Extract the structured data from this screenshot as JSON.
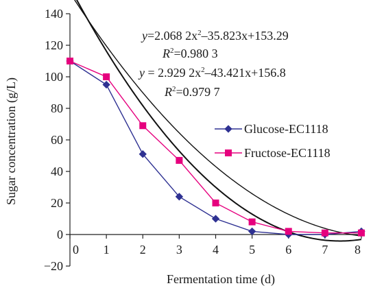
{
  "chart_data": {
    "type": "line",
    "title": "",
    "xlabel": "Fermentation time (d)",
    "ylabel": "Sugar concentration (g/L)",
    "xlim": [
      0,
      8
    ],
    "ylim": [
      -20,
      140
    ],
    "x_ticks": [
      0,
      1,
      2,
      3,
      4,
      5,
      6,
      7,
      8
    ],
    "y_ticks": [
      -20,
      0,
      20,
      40,
      60,
      80,
      100,
      120,
      140
    ],
    "grid": false,
    "legend_position": "center-right",
    "series": [
      {
        "name": "Glucose-EC1118",
        "color": "#2e3192",
        "marker": "diamond",
        "x": [
          0,
          1,
          2,
          3,
          4,
          5,
          6,
          7,
          8
        ],
        "y": [
          110,
          95,
          51,
          24,
          10,
          2,
          0,
          0,
          2
        ]
      },
      {
        "name": "Fructose-EC1118",
        "color": "#e6007e",
        "marker": "square",
        "x": [
          0,
          1,
          2,
          3,
          4,
          5,
          6,
          7,
          8
        ],
        "y": [
          110,
          100,
          69,
          47,
          20,
          8,
          2,
          1,
          1
        ]
      }
    ],
    "trendlines": [
      {
        "a": 2.0682,
        "b": -35.823,
        "c": 153.29,
        "color": "#111111"
      },
      {
        "a": 2.9292,
        "b": -43.421,
        "c": 156.8,
        "color": "#111111"
      }
    ],
    "annotations": [
      {
        "eq_prefix": "y",
        "eq_a": "=2.068 2x",
        "eq_b": "–35.823x+153.29",
        "r2_label": "R",
        "r2_value": "=0.980 3"
      },
      {
        "eq_prefix": "y",
        "eq_a": " = 2.929 2x",
        "eq_b": "–43.421x+156.8",
        "r2_label": "R",
        "r2_value": "=0.979 7"
      }
    ]
  }
}
